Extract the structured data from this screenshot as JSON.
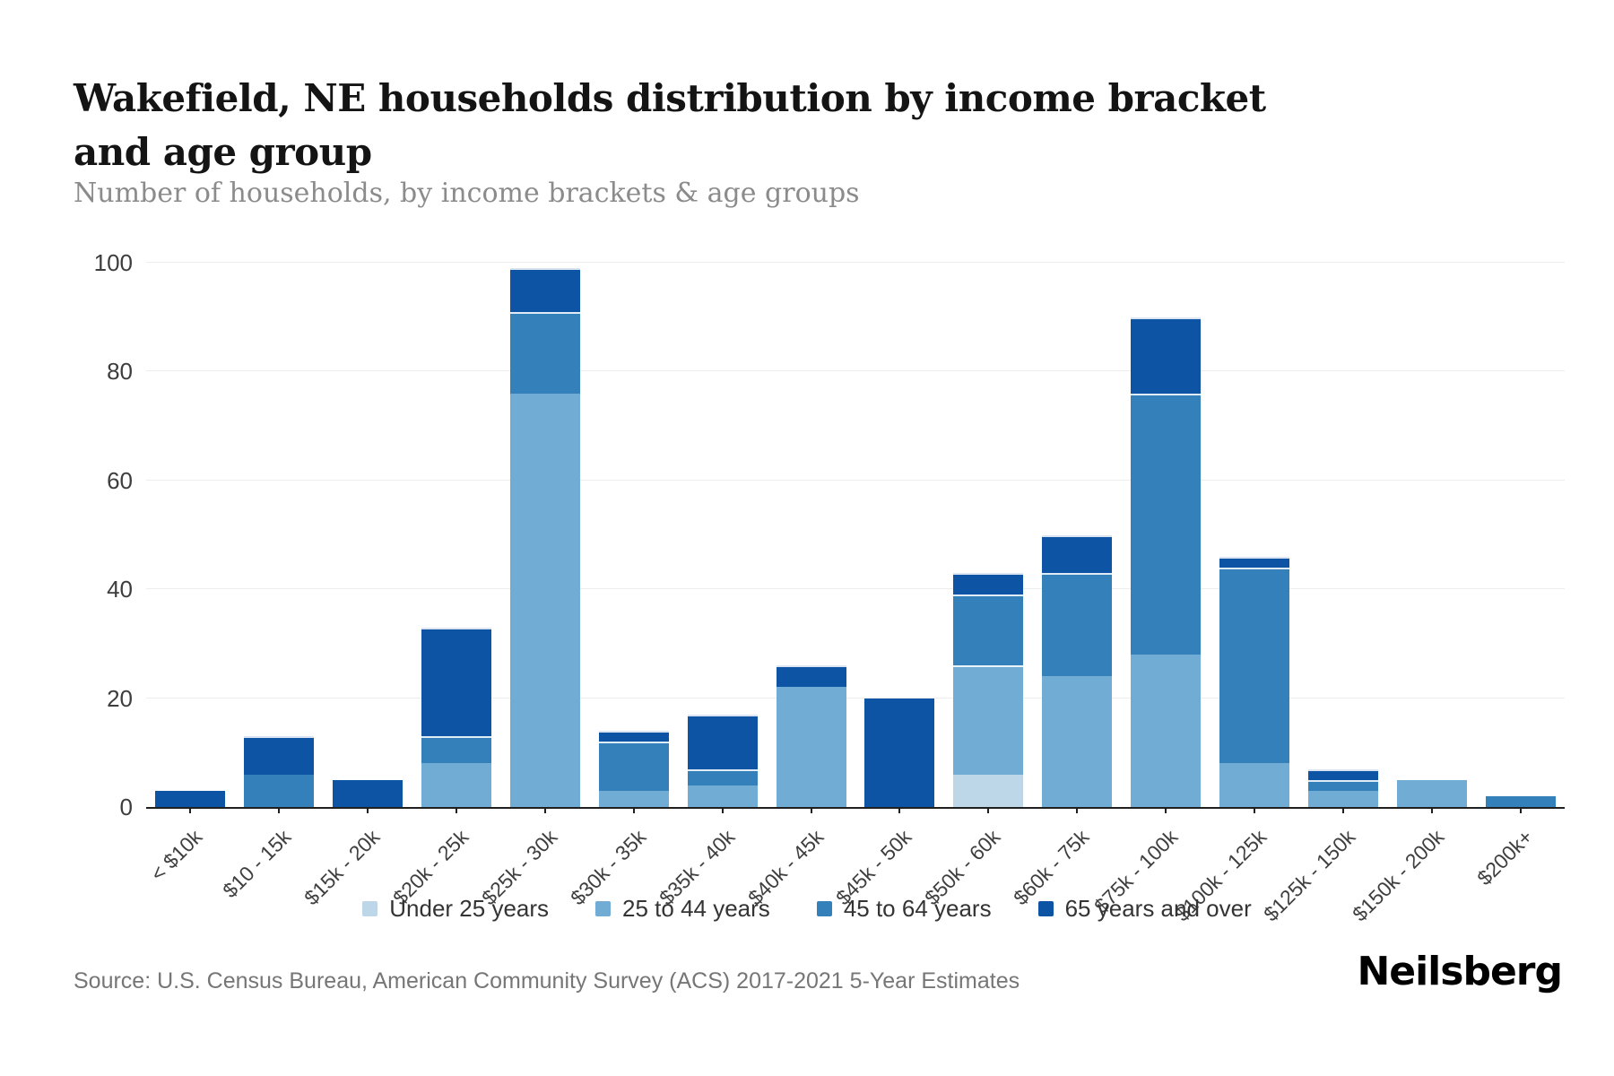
{
  "header": {
    "title": "Wakefield, NE households distribution by income bracket and age group",
    "subtitle": "Number of households, by income brackets & age groups"
  },
  "footer": {
    "source": "Source: U.S. Census Bureau, American Community Survey (ACS) 2017-2021 5-Year Estimates",
    "brand": "Neilsberg"
  },
  "colors": {
    "under_25": "#bdd6e8",
    "age_25_44": "#70acd4",
    "age_45_64": "#3480bb",
    "age_65_over": "#0d55a4",
    "axis_line": "#1f1f1f",
    "gridline": "#ededed",
    "tick_label": "#3d3d3d"
  },
  "chart_data": {
    "type": "bar",
    "stacked": true,
    "title": "Wakefield, NE households distribution by income bracket and age group",
    "subtitle": "Number of households, by income brackets & age groups",
    "xlabel": "",
    "ylabel": "",
    "ylim": [
      0,
      100
    ],
    "yticks": [
      0,
      20,
      40,
      60,
      80,
      100
    ],
    "grid": true,
    "legend_position": "bottom",
    "categories": [
      "< $10k",
      "$10 - 15k",
      "$15k - 20k",
      "$20k - 25k",
      "$25k - 30k",
      "$30k - 35k",
      "$35k - 40k",
      "$40k - 45k",
      "$45k - 50k",
      "$50k - 60k",
      "$60k - 75k",
      "$75k - 100k",
      "$100k - 125k",
      "$125k - 150k",
      "$150k - 200k",
      "$200k+"
    ],
    "series": [
      {
        "name": "Under 25 years",
        "color": "#bdd6e8",
        "values": [
          0,
          0,
          0,
          0,
          0,
          0,
          0,
          0,
          0,
          6,
          0,
          0,
          0,
          0,
          0,
          0
        ]
      },
      {
        "name": "25 to 44 years",
        "color": "#70acd4",
        "values": [
          0,
          0,
          0,
          8,
          76,
          3,
          4,
          22,
          0,
          20,
          24,
          28,
          8,
          3,
          5,
          0
        ]
      },
      {
        "name": "45 to 64 years",
        "color": "#3480bb",
        "values": [
          0,
          6,
          0,
          5,
          15,
          9,
          3,
          0,
          0,
          13,
          19,
          48,
          36,
          2,
          0,
          2
        ]
      },
      {
        "name": "65 years and over",
        "color": "#0d55a4",
        "values": [
          3,
          7,
          5,
          20,
          8,
          2,
          10,
          4,
          20,
          4,
          7,
          14,
          2,
          2,
          0,
          0
        ]
      }
    ],
    "totals": [
      3,
      13,
      5,
      33,
      99,
      14,
      17,
      26,
      20,
      43,
      50,
      90,
      46,
      7,
      5,
      2
    ]
  }
}
